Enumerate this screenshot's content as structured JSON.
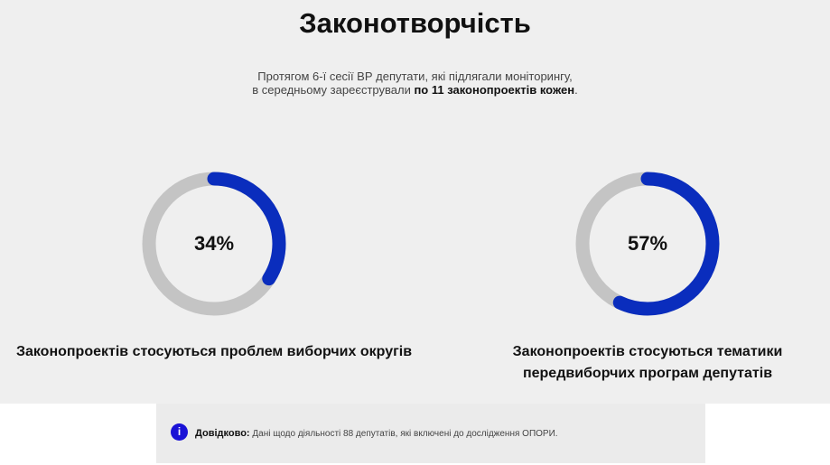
{
  "title": "Законотворчість",
  "subtitle": {
    "line1": "Протягом 6-ї сесії ВР депутати, які підлягали моніторингу,",
    "line2_prefix": "в середньому зареєстрували ",
    "line2_bold": "по 11 законопроектів кожен",
    "line2_suffix": "."
  },
  "colors": {
    "accent": "#0a2dbd",
    "track": "#c4c4c4"
  },
  "stats": [
    {
      "value": 34,
      "label": "34%",
      "caption": "Законопроектів стосуються проблем виборчих округів"
    },
    {
      "value": 57,
      "label": "57%",
      "caption": "Законопроектів стосуються тематики передвиборчих програм депутатів"
    }
  ],
  "note": {
    "icon": "info-icon",
    "icon_glyph": "i",
    "label": "Довідково:",
    "text": " Дані щодо діяльності 88 депутатів, які включені до дослідження ОПОРИ."
  }
}
